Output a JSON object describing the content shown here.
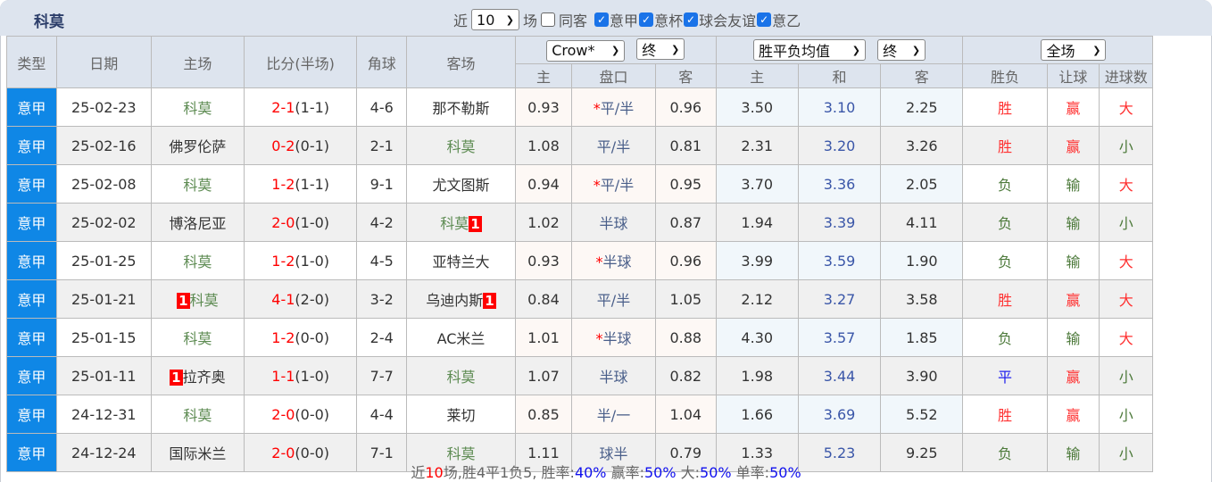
{
  "title": "科莫",
  "filters": {
    "prefix": "近",
    "count": "10",
    "suffix": "场",
    "same_venue": "同客",
    "same_venue_checked": false,
    "leagues": [
      {
        "label": "意甲",
        "checked": true
      },
      {
        "label": "意杯",
        "checked": true
      },
      {
        "label": "球会友谊",
        "checked": true
      },
      {
        "label": "意乙",
        "checked": true
      }
    ]
  },
  "headers": {
    "type": "类型",
    "date": "日期",
    "home": "主场",
    "score": "比分(半场)",
    "corner": "角球",
    "away": "客场",
    "ah_company": "Crow*",
    "ah_stage": "终",
    "eu_company": "胜平负均值",
    "eu_stage": "终",
    "period": "全场",
    "ah_home": "主",
    "ah_line": "盘口",
    "ah_away": "客",
    "eu_home": "主",
    "eu_draw": "和",
    "eu_away": "客",
    "result": "胜负",
    "handicap": "让球",
    "goals": "进球数"
  },
  "colors": {
    "type_bg": "#0f87e6",
    "win": "#ff3030",
    "lose": "#4d7a3b",
    "draw": "#2222ee",
    "red_card": "#ff0000"
  },
  "rows": [
    {
      "type": "意甲",
      "date": "25-02-23",
      "home": "科莫",
      "home_como": true,
      "home_red": "",
      "ft": "2-1",
      "ht": "(1-1)",
      "corner": "4-6",
      "away": "那不勒斯",
      "away_como": false,
      "away_red": "",
      "ah_h": "0.93",
      "star": true,
      "line": "平/半",
      "ah_a": "0.96",
      "eu_h": "3.50",
      "eu_d": "3.10",
      "eu_a": "2.25",
      "res": "胜",
      "hc": "赢",
      "goals": "大"
    },
    {
      "type": "意甲",
      "date": "25-02-16",
      "home": "佛罗伦萨",
      "home_como": false,
      "home_red": "",
      "ft": "0-2",
      "ht": "(0-1)",
      "corner": "2-1",
      "away": "科莫",
      "away_como": true,
      "away_red": "",
      "ah_h": "1.08",
      "star": false,
      "line": "平/半",
      "ah_a": "0.81",
      "eu_h": "2.31",
      "eu_d": "3.20",
      "eu_a": "3.26",
      "res": "胜",
      "hc": "赢",
      "goals": "小"
    },
    {
      "type": "意甲",
      "date": "25-02-08",
      "home": "科莫",
      "home_como": true,
      "home_red": "",
      "ft": "1-2",
      "ht": "(1-1)",
      "corner": "9-1",
      "away": "尤文图斯",
      "away_como": false,
      "away_red": "",
      "ah_h": "0.94",
      "star": true,
      "line": "平/半",
      "ah_a": "0.95",
      "eu_h": "3.70",
      "eu_d": "3.36",
      "eu_a": "2.05",
      "res": "负",
      "hc": "输",
      "goals": "大"
    },
    {
      "type": "意甲",
      "date": "25-02-02",
      "home": "博洛尼亚",
      "home_como": false,
      "home_red": "",
      "ft": "2-0",
      "ht": "(1-0)",
      "corner": "4-2",
      "away": "科莫",
      "away_como": true,
      "away_red": "1",
      "ah_h": "1.02",
      "star": false,
      "line": "半球",
      "ah_a": "0.87",
      "eu_h": "1.94",
      "eu_d": "3.39",
      "eu_a": "4.11",
      "res": "负",
      "hc": "输",
      "goals": "小"
    },
    {
      "type": "意甲",
      "date": "25-01-25",
      "home": "科莫",
      "home_como": true,
      "home_red": "",
      "ft": "1-2",
      "ht": "(1-0)",
      "corner": "4-5",
      "away": "亚特兰大",
      "away_como": false,
      "away_red": "",
      "ah_h": "0.93",
      "star": true,
      "line": "半球",
      "ah_a": "0.96",
      "eu_h": "3.99",
      "eu_d": "3.59",
      "eu_a": "1.90",
      "res": "负",
      "hc": "输",
      "goals": "大"
    },
    {
      "type": "意甲",
      "date": "25-01-21",
      "home": "科莫",
      "home_como": true,
      "home_red": "1",
      "ft": "4-1",
      "ht": "(2-0)",
      "corner": "3-2",
      "away": "乌迪内斯",
      "away_como": false,
      "away_red": "1",
      "ah_h": "0.84",
      "star": false,
      "line": "平/半",
      "ah_a": "1.05",
      "eu_h": "2.12",
      "eu_d": "3.27",
      "eu_a": "3.58",
      "res": "胜",
      "hc": "赢",
      "goals": "大"
    },
    {
      "type": "意甲",
      "date": "25-01-15",
      "home": "科莫",
      "home_como": true,
      "home_red": "",
      "ft": "1-2",
      "ht": "(0-0)",
      "corner": "2-4",
      "away": "AC米兰",
      "away_como": false,
      "away_red": "",
      "ah_h": "1.01",
      "star": true,
      "line": "半球",
      "ah_a": "0.88",
      "eu_h": "4.30",
      "eu_d": "3.57",
      "eu_a": "1.85",
      "res": "负",
      "hc": "输",
      "goals": "大"
    },
    {
      "type": "意甲",
      "date": "25-01-11",
      "home": "拉齐奥",
      "home_como": false,
      "home_red": "1",
      "ft": "1-1",
      "ht": "(1-0)",
      "corner": "7-7",
      "away": "科莫",
      "away_como": true,
      "away_red": "",
      "ah_h": "1.07",
      "star": false,
      "line": "半球",
      "ah_a": "0.82",
      "eu_h": "1.98",
      "eu_d": "3.44",
      "eu_a": "3.90",
      "res": "平",
      "hc": "赢",
      "goals": "小"
    },
    {
      "type": "意甲",
      "date": "24-12-31",
      "home": "科莫",
      "home_como": true,
      "home_red": "",
      "ft": "2-0",
      "ht": "(0-0)",
      "corner": "4-4",
      "away": "莱切",
      "away_como": false,
      "away_red": "",
      "ah_h": "0.85",
      "star": false,
      "line": "半/一",
      "ah_a": "1.04",
      "eu_h": "1.66",
      "eu_d": "3.69",
      "eu_a": "5.52",
      "res": "胜",
      "hc": "赢",
      "goals": "小"
    },
    {
      "type": "意甲",
      "date": "24-12-24",
      "home": "国际米兰",
      "home_como": false,
      "home_red": "",
      "ft": "2-0",
      "ht": "(0-0)",
      "corner": "7-1",
      "away": "科莫",
      "away_como": true,
      "away_red": "",
      "ah_h": "1.11",
      "star": false,
      "line": "球半",
      "ah_a": "0.79",
      "eu_h": "1.33",
      "eu_d": "5.23",
      "eu_a": "9.25",
      "res": "负",
      "hc": "输",
      "goals": "小"
    }
  ],
  "footer": {
    "p1": "近",
    "n": "10",
    "p2": "场,胜4平1负5, 胜率:",
    "win_rate": "40%",
    "p3": " 赢率:",
    "hc_rate": "50%",
    "p4": " 大:",
    "big_rate": "50%",
    "p5": " 单率:",
    "odd_rate": "50%"
  }
}
